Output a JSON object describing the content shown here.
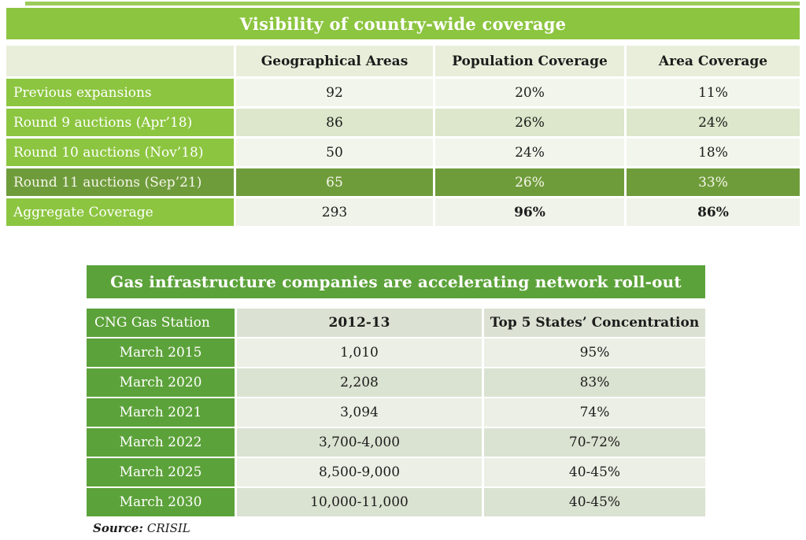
{
  "colors": {
    "bright_green": "#8cc540",
    "dark_green_row": "#6f9c3b",
    "medium_green": "#5ca23a",
    "table1_header_bg": "#e8eeda",
    "table1_row_light": "#f2f5eb",
    "table1_row_tint": "#dce7cb",
    "table2_header_bg": "#dbe2d3",
    "table2_row_light": "#ebefe5",
    "table2_row_dark": "#dae2d1"
  },
  "table1": {
    "title": "Visibility of country-wide coverage",
    "columns": [
      "",
      "Geographical Areas",
      "Population Coverage",
      "Area Coverage"
    ],
    "rows": [
      {
        "label": "Previous expansions",
        "values": [
          "92",
          "20%",
          "11%"
        ]
      },
      {
        "label": "Round 9 auctions (Apr’18)",
        "values": [
          "86",
          "26%",
          "24%"
        ]
      },
      {
        "label": "Round 10 auctions (Nov’18)",
        "values": [
          "50",
          "24%",
          "18%"
        ]
      },
      {
        "label": "Round 11 auctions (Sep’21)",
        "values": [
          "65",
          "26%",
          "33%"
        ]
      },
      {
        "label": "Aggregate Coverage",
        "values": [
          "293",
          "96%",
          "86%"
        ]
      }
    ]
  },
  "table2": {
    "title": "Gas infrastructure companies are accelerating network roll-out",
    "columns": [
      "CNG Gas Station",
      "2012-13",
      "Top 5 States’ Concentration"
    ],
    "rows": [
      {
        "label": "March 2015",
        "values": [
          "1,010",
          "95%"
        ]
      },
      {
        "label": "March 2020",
        "values": [
          "2,208",
          "83%"
        ]
      },
      {
        "label": "March 2021",
        "values": [
          "3,094",
          "74%"
        ]
      },
      {
        "label": "March 2022",
        "values": [
          "3,700-4,000",
          "70-72%"
        ]
      },
      {
        "label": "March 2025",
        "values": [
          "8,500-9,000",
          "40-45%"
        ]
      },
      {
        "label": "March 2030",
        "values": [
          "10,000-11,000",
          "40-45%"
        ]
      }
    ]
  },
  "source": {
    "label": "Source:",
    "value": "CRISIL"
  }
}
